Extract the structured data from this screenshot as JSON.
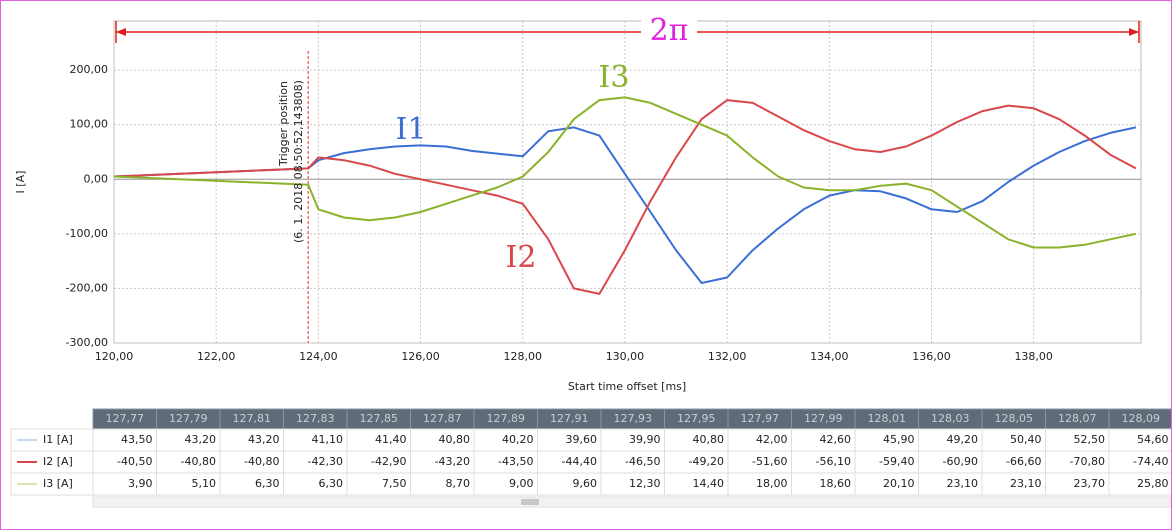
{
  "chart_data": {
    "type": "line",
    "xlabel": "Start time offset [ms]",
    "ylabel": "I [A]",
    "xlim": [
      120,
      140.1
    ],
    "ylim": [
      -300,
      290
    ],
    "xticks": [
      {
        "value": 120,
        "label": "120,00"
      },
      {
        "value": 122,
        "label": "122,00"
      },
      {
        "value": 124,
        "label": "124,00"
      },
      {
        "value": 126,
        "label": "126,00"
      },
      {
        "value": 128,
        "label": "128,00"
      },
      {
        "value": 130,
        "label": "130,00"
      },
      {
        "value": 132,
        "label": "132,00"
      },
      {
        "value": 134,
        "label": "134,00"
      },
      {
        "value": 136,
        "label": "136,00"
      },
      {
        "value": 138,
        "label": "138,00"
      }
    ],
    "yticks": [
      {
        "value": -300,
        "label": "-300,00"
      },
      {
        "value": -200,
        "label": "-200,00"
      },
      {
        "value": -100,
        "label": "-100,00"
      },
      {
        "value": 0,
        "label": "0,00"
      },
      {
        "value": 100,
        "label": "100,00"
      },
      {
        "value": 200,
        "label": "200,00"
      }
    ],
    "grid": true,
    "x": [
      120,
      123.8,
      124,
      124.5,
      125,
      125.5,
      126,
      126.5,
      127,
      127.5,
      128,
      128.5,
      129,
      129.5,
      130,
      130.5,
      131,
      131.5,
      132,
      132.5,
      133,
      133.5,
      134,
      134.5,
      135,
      135.5,
      136,
      136.5,
      137,
      137.5,
      138,
      138.5,
      139,
      139.5,
      140
    ],
    "series": [
      {
        "name": "I1",
        "color": "#3b6fd6",
        "values": [
          5,
          20,
          35,
          48,
          55,
          60,
          62,
          60,
          52,
          47,
          42,
          88,
          95,
          80,
          10,
          -60,
          -130,
          -190,
          -180,
          -130,
          -90,
          -55,
          -30,
          -20,
          -22,
          -35,
          -55,
          -60,
          -40,
          -5,
          25,
          50,
          70,
          85,
          95
        ]
      },
      {
        "name": "I2",
        "color": "#d9474a",
        "values": [
          5,
          20,
          40,
          35,
          25,
          10,
          0,
          -10,
          -20,
          -30,
          -45,
          -110,
          -200,
          -210,
          -130,
          -40,
          40,
          110,
          145,
          140,
          115,
          90,
          70,
          55,
          50,
          60,
          80,
          105,
          125,
          135,
          130,
          110,
          80,
          45,
          20
        ]
      },
      {
        "name": "I3",
        "color": "#8ab32a",
        "values": [
          5,
          -10,
          -55,
          -70,
          -75,
          -70,
          -60,
          -45,
          -30,
          -15,
          5,
          50,
          110,
          145,
          150,
          140,
          120,
          100,
          80,
          40,
          5,
          -15,
          -20,
          -20,
          -12,
          -8,
          -20,
          -50,
          -80,
          -110,
          -125,
          -125,
          -120,
          -110,
          -100
        ]
      }
    ],
    "period_label": "2π",
    "trigger_x": 123.8,
    "trigger_label": "Trigger position",
    "trigger_time": "(6. 1. 2018 08:50:52,143808)"
  },
  "table": {
    "columns": [
      "127,77",
      "127,79",
      "127,81",
      "127,83",
      "127,85",
      "127,87",
      "127,89",
      "127,91",
      "127,93",
      "127,95",
      "127,97",
      "127,99",
      "128,01",
      "128,03",
      "128,05",
      "128,07",
      "128,09"
    ],
    "rows": [
      {
        "label": "I1 [A]",
        "cells": [
          "43,50",
          "43,20",
          "43,20",
          "41,10",
          "41,40",
          "40,80",
          "40,20",
          "39,60",
          "39,90",
          "40,80",
          "42,00",
          "42,60",
          "45,90",
          "49,20",
          "50,40",
          "52,50",
          "54,60"
        ]
      },
      {
        "label": "I2 [A]",
        "cells": [
          "-40,50",
          "-40,80",
          "-40,80",
          "-42,30",
          "-42,90",
          "-43,20",
          "-43,50",
          "-44,40",
          "-46,50",
          "-49,20",
          "-51,60",
          "-56,10",
          "-59,40",
          "-60,90",
          "-66,60",
          "-70,80",
          "-74,40"
        ]
      },
      {
        "label": "I3 [A]",
        "cells": [
          "3,90",
          "5,10",
          "6,30",
          "6,30",
          "7,50",
          "8,70",
          "9,00",
          "9,60",
          "12,30",
          "14,40",
          "18,00",
          "18,60",
          "20,10",
          "23,10",
          "23,10",
          "23,70",
          "25,80"
        ]
      }
    ]
  }
}
